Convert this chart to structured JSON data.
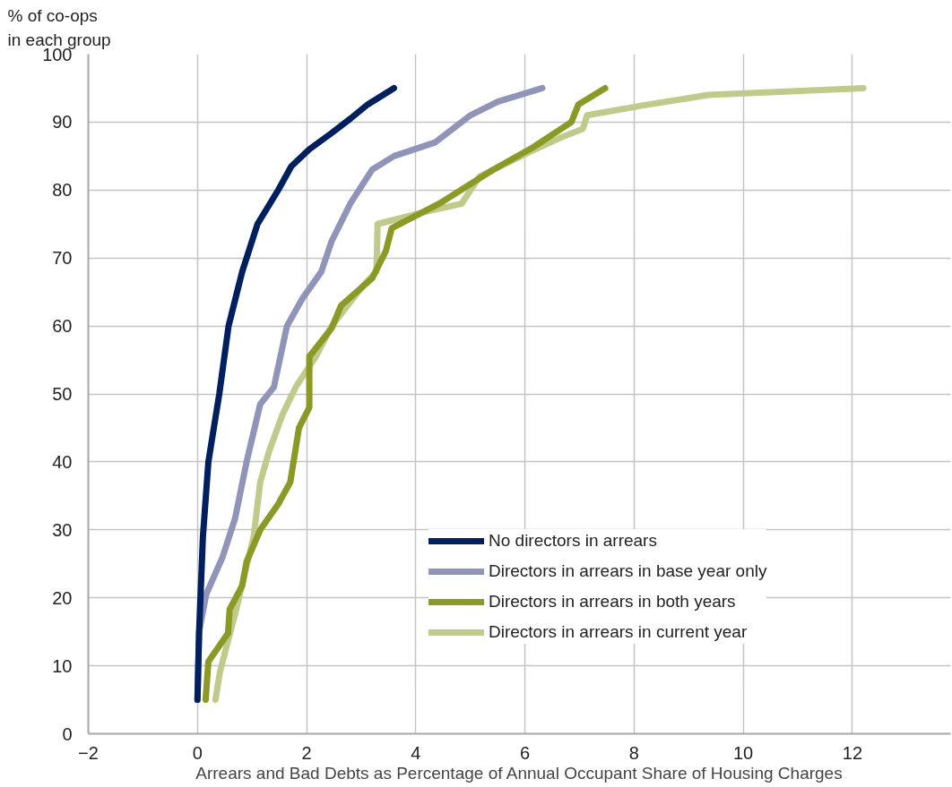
{
  "chart_data": {
    "type": "line",
    "xlabel": "Arrears and Bad Debts as Percentage of Annual Occupant Share of Housing Charges",
    "ylabel": "% of co-ops\nin each group",
    "xlim": [
      -2,
      13.8
    ],
    "ylim": [
      0,
      100
    ],
    "xticks": [
      -2,
      0,
      2,
      4,
      6,
      8,
      10,
      12
    ],
    "yticks": [
      0,
      10,
      20,
      30,
      40,
      50,
      60,
      70,
      80,
      90,
      100
    ],
    "grid": true,
    "legend": "bottom right",
    "marker": "none",
    "line_style": "solid",
    "series": [
      {
        "name": "No directors in arrears",
        "color": "#001f5f",
        "x": [
          0,
          0.03,
          0.1,
          0.2,
          0.4,
          0.57,
          0.82,
          1.1,
          1.48,
          1.72,
          2.05,
          2.46,
          2.8,
          3.12,
          3.6
        ],
        "values": [
          5,
          15,
          29,
          40,
          50,
          60,
          68,
          75,
          80,
          83.5,
          86,
          88.4,
          90.5,
          92.6,
          95
        ]
      },
      {
        "name": "Directors in arrears in base year only",
        "color": "#9194b9",
        "x": [
          0,
          0.03,
          0.16,
          0.46,
          0.69,
          0.9,
          1.15,
          1.4,
          1.64,
          1.92,
          2.27,
          2.46,
          2.8,
          3.2,
          3.6,
          4.35,
          5.0,
          5.5,
          6.32
        ],
        "values": [
          5,
          15,
          20.5,
          26,
          31.7,
          40,
          48.5,
          51,
          60,
          64,
          68,
          72.5,
          78,
          83,
          85,
          87,
          91,
          93,
          95
        ]
      },
      {
        "name": "Directors in arrears in both years",
        "color": "#8a9a25",
        "x": [
          0.15,
          0.2,
          0.56,
          0.59,
          0.82,
          0.9,
          1.15,
          1.48,
          1.7,
          1.86,
          2.05,
          2.05,
          2.46,
          2.63,
          3.2,
          3.45,
          3.56,
          4.43,
          5.42,
          6.15,
          6.85,
          6.98,
          7.47
        ],
        "values": [
          5,
          10.6,
          14.8,
          18.3,
          21.8,
          25.3,
          30,
          33.8,
          37,
          45,
          48,
          55.5,
          59.7,
          63,
          67,
          71,
          74.4,
          78,
          83,
          86.3,
          90,
          92.6,
          95
        ]
      },
      {
        "name": "Directors in arrears in current year",
        "color": "#c0ca8b",
        "x": [
          0.33,
          0.41,
          0.57,
          0.69,
          0.85,
          1.03,
          1.15,
          1.31,
          1.56,
          1.8,
          2.17,
          2.46,
          3.04,
          3.28,
          3.3,
          4.27,
          4.84,
          5.17,
          6.08,
          6.65,
          7.06,
          7.14,
          8.2,
          9.36,
          12.2
        ],
        "values": [
          5,
          9,
          14,
          17.6,
          23,
          29,
          37,
          41.5,
          47,
          51,
          55.5,
          60,
          66,
          68,
          75,
          77,
          78,
          82,
          85.6,
          87.7,
          89,
          91,
          92.5,
          94,
          95
        ]
      }
    ]
  }
}
